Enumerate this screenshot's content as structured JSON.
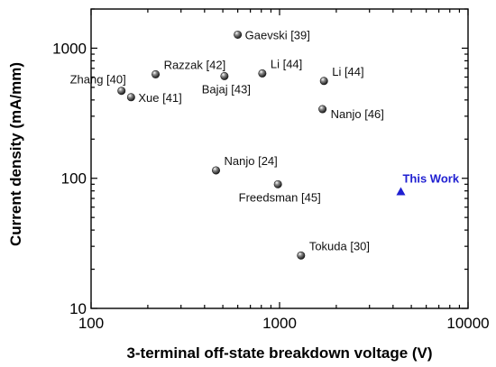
{
  "chart_data": {
    "type": "scatter",
    "title": "",
    "xlabel": "3-terminal off-state breakdown voltage (V)",
    "ylabel": "Current density (mA/mm)",
    "x_scale": "log",
    "y_scale": "log",
    "xlim": [
      100,
      10000
    ],
    "ylim": [
      10,
      2000
    ],
    "x_ticks": [
      {
        "value": 100,
        "label": "100"
      },
      {
        "value": 1000,
        "label": "1000"
      },
      {
        "value": 10000,
        "label": "10000"
      }
    ],
    "y_ticks": [
      {
        "value": 10,
        "label": "10"
      },
      {
        "value": 100,
        "label": "100"
      },
      {
        "value": 1000,
        "label": "1000"
      }
    ],
    "grid": false,
    "legend": "none",
    "colors": {
      "points": "#1a1a1a",
      "highlight": "#1f1fd1",
      "axis": "#000000"
    },
    "points": [
      {
        "label": "Gaevski  [39]",
        "x": 600,
        "y": 1270,
        "label_pos": "right"
      },
      {
        "label": "Razzak [42]",
        "x": 220,
        "y": 630,
        "label_pos": "above-right"
      },
      {
        "label": "Li [44]",
        "x": 810,
        "y": 640,
        "label_pos": "above-right"
      },
      {
        "label": "Li [44]",
        "x": 1720,
        "y": 560,
        "label_pos": "above-right"
      },
      {
        "label": "Zhang [40]",
        "x": 145,
        "y": 470,
        "label_pos": "above-left"
      },
      {
        "label": "Bajaj [43]",
        "x": 510,
        "y": 610,
        "label_pos": "below"
      },
      {
        "label": "Xue [41]",
        "x": 163,
        "y": 420,
        "label_pos": "right"
      },
      {
        "label": "Nanjo [46]",
        "x": 1690,
        "y": 340,
        "label_pos": "below-right"
      },
      {
        "label": "Nanjo [24]",
        "x": 460,
        "y": 115,
        "label_pos": "above-right"
      },
      {
        "label": "Freedsman [45]",
        "x": 980,
        "y": 90,
        "label_pos": "below"
      },
      {
        "label": "Tokuda [30]",
        "x": 1300,
        "y": 25.5,
        "label_pos": "above-right"
      }
    ],
    "highlight": {
      "label": "This Work",
      "x": 4400,
      "y": 79,
      "marker": "triangle"
    }
  }
}
